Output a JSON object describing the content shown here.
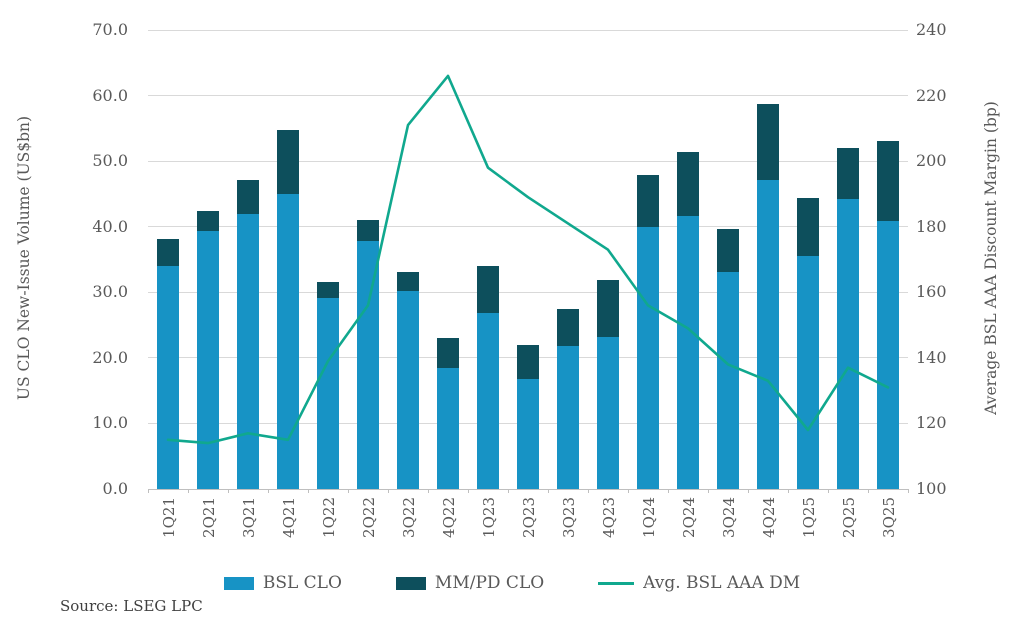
{
  "chart_data": {
    "type": "bar",
    "subtype": "stacked-bar-with-line-overlay",
    "categories": [
      "1Q21",
      "2Q21",
      "3Q21",
      "4Q21",
      "1Q22",
      "2Q22",
      "3Q22",
      "4Q22",
      "1Q23",
      "2Q23",
      "3Q23",
      "4Q23",
      "1Q24",
      "2Q24",
      "3Q24",
      "4Q24",
      "1Q25",
      "2Q25",
      "3Q25"
    ],
    "series": [
      {
        "name": "BSL CLO",
        "type": "bar",
        "stack": "volume",
        "color": "#1793c5",
        "values": [
          34.0,
          39.4,
          42.0,
          45.0,
          29.1,
          37.8,
          30.2,
          18.5,
          26.8,
          16.8,
          21.8,
          23.2,
          40.0,
          41.6,
          33.1,
          47.1,
          35.6,
          44.2,
          40.8
        ]
      },
      {
        "name": "MM/PD CLO",
        "type": "bar",
        "stack": "volume",
        "color": "#0d4f5c",
        "values": [
          4.2,
          3.0,
          5.1,
          9.8,
          2.4,
          3.2,
          2.9,
          4.5,
          7.2,
          5.2,
          5.7,
          8.7,
          7.9,
          9.8,
          6.5,
          11.6,
          8.8,
          7.8,
          12.2
        ]
      },
      {
        "name": "Avg. BSL AAA DM",
        "type": "line",
        "axis": "right",
        "color": "#10a88e",
        "values": [
          115,
          114,
          117,
          115,
          139,
          156,
          211,
          226,
          198,
          189,
          181,
          173,
          156,
          149,
          138,
          133,
          118,
          137,
          131
        ]
      }
    ],
    "left_axis": {
      "title": "US CLO New-Issue Volume (US$bn)",
      "min": 0,
      "max": 70,
      "step": 10,
      "tick_labels": [
        "70.0",
        "60.0",
        "50.0",
        "40.0",
        "30.0",
        "20.0",
        "10.0",
        "0.0"
      ]
    },
    "right_axis": {
      "title": "Average BSL AAA Discount Margin (bp)",
      "min": 100,
      "max": 240,
      "step": 20,
      "tick_labels": [
        "240",
        "220",
        "200",
        "180",
        "160",
        "140",
        "120",
        "100"
      ]
    },
    "grid": true,
    "legend_position": "bottom"
  },
  "legend": {
    "items": [
      "BSL CLO",
      "MM/PD CLO",
      "Avg. BSL AAA DM"
    ]
  },
  "source_note": "Source: LSEG LPC",
  "colors": {
    "bsl_bar": "#1793c5",
    "mmpd_bar": "#0d4f5c",
    "dm_line": "#10a88e",
    "gridline": "#d9d9d9",
    "axis_text": "#595959"
  }
}
